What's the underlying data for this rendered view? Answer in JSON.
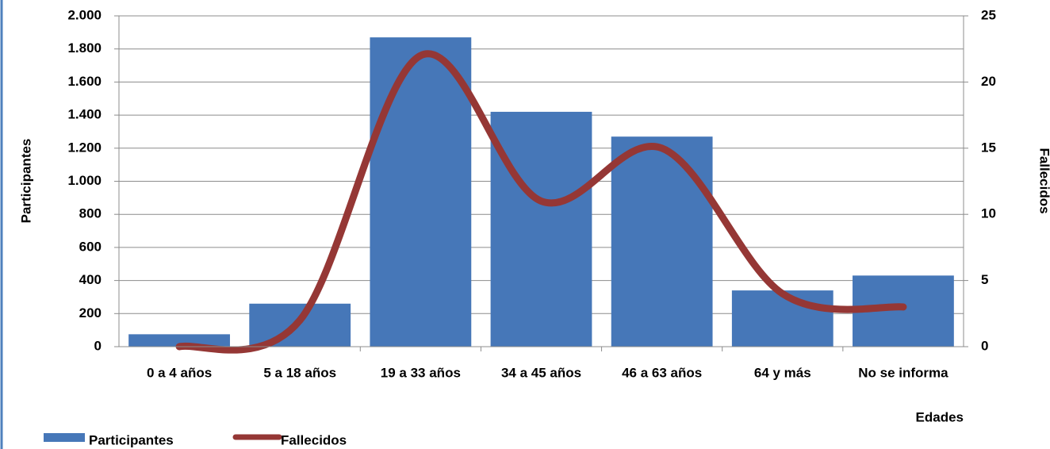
{
  "chart_data": {
    "type": "bar",
    "categories": [
      "0 a 4 años",
      "5 a 18 años",
      "19 a 33 años",
      "34 a 45 años",
      "46 a 63 años",
      "64 y más",
      "No se informa"
    ],
    "series": [
      {
        "name": "Participantes",
        "type": "bar",
        "color": "#4677b8",
        "values": [
          75,
          260,
          1870,
          1420,
          1270,
          340,
          430
        ]
      },
      {
        "name": "Fallecidos",
        "type": "line",
        "axis": "y2",
        "color": "#953735",
        "values": [
          0,
          2,
          22,
          11,
          15,
          4,
          3
        ]
      }
    ],
    "y_label": "Participantes",
    "y2_label": "Fallecidos",
    "x_label": "Edades",
    "ylim": [
      0,
      2000
    ],
    "yticks": [
      0,
      200,
      400,
      600,
      800,
      {
        "value": 1000,
        "label": "1.000"
      },
      {
        "value": 1200,
        "label": "1.200"
      },
      {
        "value": 1400,
        "label": "1.400"
      },
      {
        "value": 1600,
        "label": "1.600"
      },
      {
        "value": 1800,
        "label": "1.800"
      },
      {
        "value": 2000,
        "label": "2.000"
      }
    ],
    "y2lim": [
      0,
      25
    ],
    "y2ticks": [
      0,
      5,
      10,
      15,
      20,
      25
    ],
    "grid": true,
    "legend": "bottom-left"
  }
}
